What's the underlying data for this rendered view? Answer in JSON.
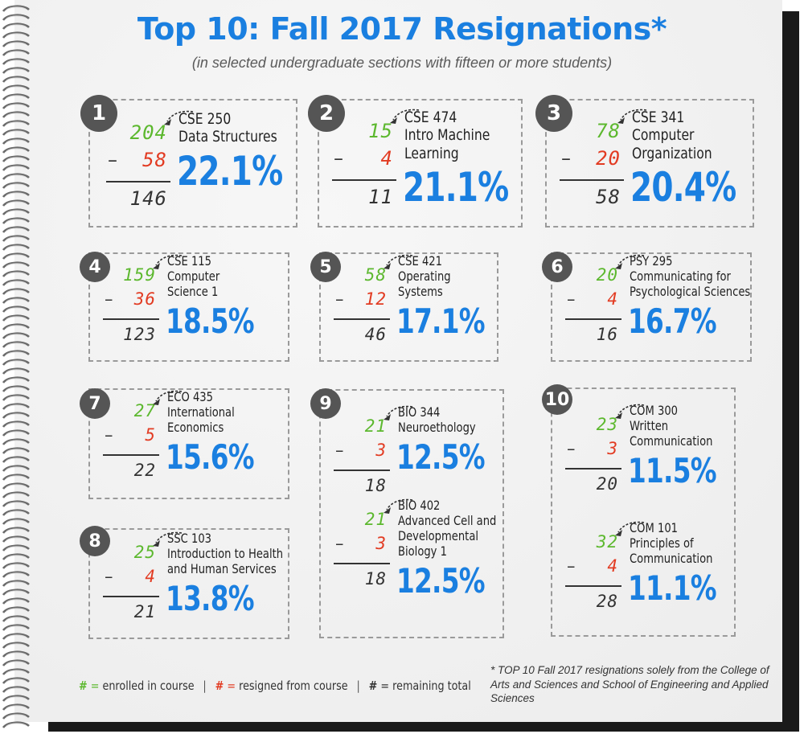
{
  "title": "Top 10: Fall 2017 Resignations*",
  "subtitle": "(in selected undergraduate sections with fifteen or more students)",
  "colors": {
    "accent_blue": "#1a7fe0",
    "enrolled_green": "#5cb82e",
    "resigned_red": "#e23b22",
    "remaining_dark": "#333333",
    "badge_gray": "#555555"
  },
  "minus_sign": "–",
  "entries": [
    {
      "rank": "1",
      "enrolled": "204",
      "resigned": "58",
      "remaining": "146",
      "course_code": "CSE 250",
      "course_name": "Data Structures",
      "course_name_2": "",
      "course_name_3": "",
      "percent": "22.1%"
    },
    {
      "rank": "2",
      "enrolled": "15",
      "resigned": "4",
      "remaining": "11",
      "course_code": "CSE 474",
      "course_name": "Intro Machine",
      "course_name_2": "Learning",
      "course_name_3": "",
      "percent": "21.1%"
    },
    {
      "rank": "3",
      "enrolled": "78",
      "resigned": "20",
      "remaining": "58",
      "course_code": "CSE 341",
      "course_name": "Computer",
      "course_name_2": "Organization",
      "course_name_3": "",
      "percent": "20.4%"
    },
    {
      "rank": "4",
      "enrolled": "159",
      "resigned": "36",
      "remaining": "123",
      "course_code": "CSE 115",
      "course_name": "Computer",
      "course_name_2": "Science 1",
      "course_name_3": "",
      "percent": "18.5%"
    },
    {
      "rank": "5",
      "enrolled": "58",
      "resigned": "12",
      "remaining": "46",
      "course_code": "CSE 421",
      "course_name": "Operating",
      "course_name_2": "Systems",
      "course_name_3": "",
      "percent": "17.1%"
    },
    {
      "rank": "6",
      "enrolled": "20",
      "resigned": "4",
      "remaining": "16",
      "course_code": "PSY 295",
      "course_name": "Communicating for",
      "course_name_2": "Psychological Sciences",
      "course_name_3": "",
      "percent": "16.7%"
    },
    {
      "rank": "7",
      "enrolled": "27",
      "resigned": "5",
      "remaining": "22",
      "course_code": "ECO 435",
      "course_name": "International",
      "course_name_2": "Economics",
      "course_name_3": "",
      "percent": "15.6%"
    },
    {
      "rank": "8",
      "enrolled": "25",
      "resigned": "4",
      "remaining": "21",
      "course_code": "SSC 103",
      "course_name": "Introduction to Health",
      "course_name_2": "and Human Services",
      "course_name_3": "",
      "percent": "13.8%"
    },
    {
      "rank": "9",
      "enrolled": "21",
      "resigned": "3",
      "remaining": "18",
      "course_code": "BIO 344",
      "course_name": "Neuroethology",
      "course_name_2": "",
      "course_name_3": "",
      "percent": "12.5%"
    },
    {
      "rank": "",
      "enrolled": "21",
      "resigned": "3",
      "remaining": "18",
      "course_code": "BIO 402",
      "course_name": "Advanced Cell and",
      "course_name_2": "Developmental",
      "course_name_3": "Biology 1",
      "percent": "12.5%"
    },
    {
      "rank": "10",
      "enrolled": "23",
      "resigned": "3",
      "remaining": "20",
      "course_code": "COM 300",
      "course_name": "Written",
      "course_name_2": "Communication",
      "course_name_3": "",
      "percent": "11.5%"
    },
    {
      "rank": "",
      "enrolled": "32",
      "resigned": "4",
      "remaining": "28",
      "course_code": "COM 101",
      "course_name": "Principles of",
      "course_name_2": "Communication",
      "course_name_3": "",
      "percent": "11.1%"
    }
  ],
  "legend": {
    "hash": "#",
    "equals": "=",
    "enrolled": "enrolled in course",
    "resigned": "resigned from course",
    "remaining": "remaining total",
    "separator": "|"
  },
  "footnote": "* TOP 10 Fall 2017 resignations solely from the College of Arts and Sciences and School of Engineering and Applied Sciences"
}
